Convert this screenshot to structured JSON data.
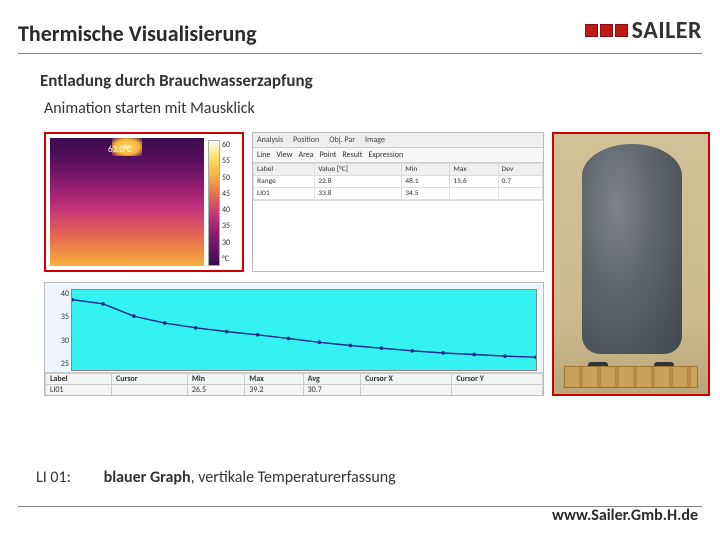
{
  "title": "Thermische Visualisierung",
  "logo": {
    "text": "SAILER",
    "box_colors": [
      "#c01818",
      "#c01818",
      "#c01818"
    ],
    "box_border": "#8a0f0f"
  },
  "subtitle": "Entladung durch Brauchwasserzapfung",
  "hint": "Animation starten mit Mausklick",
  "thermal": {
    "readout": "63.0°C",
    "scale_ticks": [
      "60",
      "55",
      "50",
      "45",
      "40",
      "35",
      "30",
      "°C"
    ]
  },
  "analysis": {
    "tabs": [
      "Analysis",
      "Position",
      "Obj. Par",
      "Image"
    ],
    "tools": [
      "Line",
      "View",
      "Area",
      "Point",
      "Result",
      "Expression"
    ],
    "table": {
      "headers": [
        "Label",
        "Value [°C]",
        "Min",
        "Max",
        "Dev"
      ],
      "rows": [
        [
          "Range",
          "22.8",
          "48.1",
          "15.6",
          "0.7"
        ],
        [
          "LI01",
          "33.8",
          "34.5",
          "",
          ""
        ]
      ]
    }
  },
  "chart": {
    "y_ticks": [
      "40",
      "35",
      "30",
      "25"
    ],
    "series_color": "#1b2a8a",
    "plot_bg": "#35f2f2",
    "points": [
      [
        0,
        38.2
      ],
      [
        30,
        37.4
      ],
      [
        60,
        35.1
      ],
      [
        90,
        33.8
      ],
      [
        120,
        32.9
      ],
      [
        150,
        32.2
      ],
      [
        180,
        31.6
      ],
      [
        210,
        30.9
      ],
      [
        240,
        30.2
      ],
      [
        270,
        29.6
      ],
      [
        300,
        29.1
      ],
      [
        330,
        28.6
      ],
      [
        360,
        28.2
      ],
      [
        390,
        27.9
      ],
      [
        420,
        27.6
      ],
      [
        450,
        27.4
      ]
    ],
    "x_max": 450,
    "y_min": 25,
    "y_max": 40,
    "legend": {
      "headers": [
        "Label",
        "Cursor",
        "Min",
        "Max",
        "Avg",
        "Cursor X",
        "Cursor Y"
      ],
      "row": [
        "LI01",
        "",
        "26.5",
        "39.2",
        "30.7",
        "",
        ""
      ]
    }
  },
  "caption": {
    "label": "LI 01:",
    "phrase_bold": "blauer Graph",
    "phrase_rest": ", vertikale Temperaturerfassung"
  },
  "footer": "www.Sailer.Gmb.H.de"
}
